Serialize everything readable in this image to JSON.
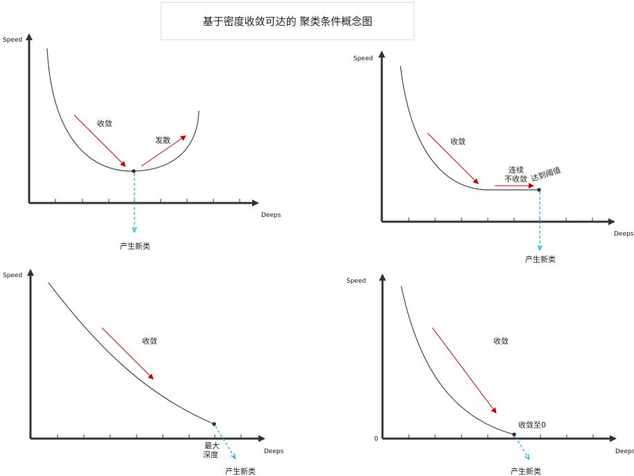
{
  "title": "基于密度收敛可达的 聚类条件概念图",
  "axis": {
    "y_label": "Speed",
    "x_label": "Deeps",
    "zero_label": "0"
  },
  "panel1": {
    "converge": "收敛",
    "diverge": "发散",
    "new_class": "产生新类"
  },
  "panel2": {
    "converge": "收敛",
    "continuous": "连续",
    "not_converge": "不收敛",
    "threshold": "达到阈值",
    "new_class": "产生新类"
  },
  "panel3": {
    "converge": "收敛",
    "max_depth_1": "最大",
    "max_depth_2": "深度",
    "new_class": "产生新类"
  },
  "panel4": {
    "converge": "收敛",
    "converge_zero": "收敛至0",
    "new_class": "产生新类"
  },
  "colors": {
    "arrow_red": "#c00000",
    "dash_blue": "#00b0f0",
    "axis": "#333333",
    "curve": "#444444"
  }
}
